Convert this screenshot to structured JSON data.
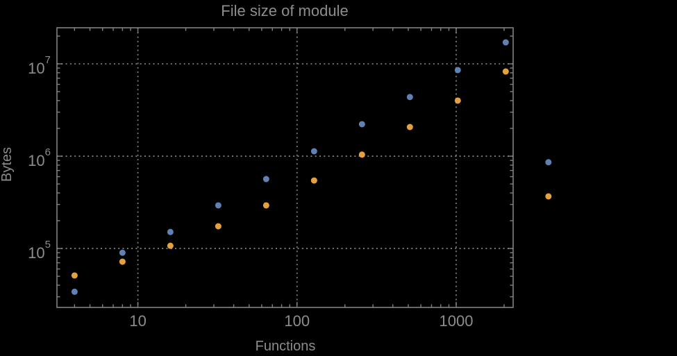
{
  "chart_data": {
    "type": "scatter",
    "title": "File size of module",
    "xlabel": "Functions",
    "ylabel": "Bytes",
    "x_scale": "log",
    "y_scale": "log",
    "xlim": [
      3.1,
      2280
    ],
    "ylim": [
      23000,
      24600000
    ],
    "x_ticks": [
      10,
      100,
      1000
    ],
    "x_tick_labels": [
      "10",
      "100",
      "1000"
    ],
    "y_ticks": [
      100000,
      1000000,
      10000000
    ],
    "y_tick_exponents": [
      5,
      6,
      7
    ],
    "grid": "dotted gridlines at decade ticks, boxed frame with logarithmic minor ticks on all four sides",
    "legend": "none",
    "annotations": "rightmost pair of points (x ≈ 3800) is drawn outside the right edge of the plot frame",
    "series": [
      {
        "name": "blue",
        "color": "#5F81B4",
        "points": [
          [
            4,
            34000
          ],
          [
            8,
            90000
          ],
          [
            16,
            151000
          ],
          [
            32,
            293000
          ],
          [
            64,
            565000
          ],
          [
            128,
            1130000
          ],
          [
            256,
            2220000
          ],
          [
            512,
            4370000
          ],
          [
            1024,
            8560000
          ],
          [
            2048,
            17100000
          ],
          [
            3800,
            860000
          ]
        ]
      },
      {
        "name": "orange",
        "color": "#E4A23E",
        "points": [
          [
            4,
            51000
          ],
          [
            8,
            72000
          ],
          [
            16,
            107000
          ],
          [
            32,
            174000
          ],
          [
            64,
            293000
          ],
          [
            128,
            545000
          ],
          [
            256,
            1040000
          ],
          [
            512,
            2070000
          ],
          [
            1024,
            4000000
          ],
          [
            2048,
            8260000
          ],
          [
            3800,
            367000
          ]
        ]
      }
    ],
    "colors": {
      "background": "#000000",
      "frame": "#828282",
      "grid": "#7d7d7d",
      "text": "#8d8d8d"
    }
  }
}
